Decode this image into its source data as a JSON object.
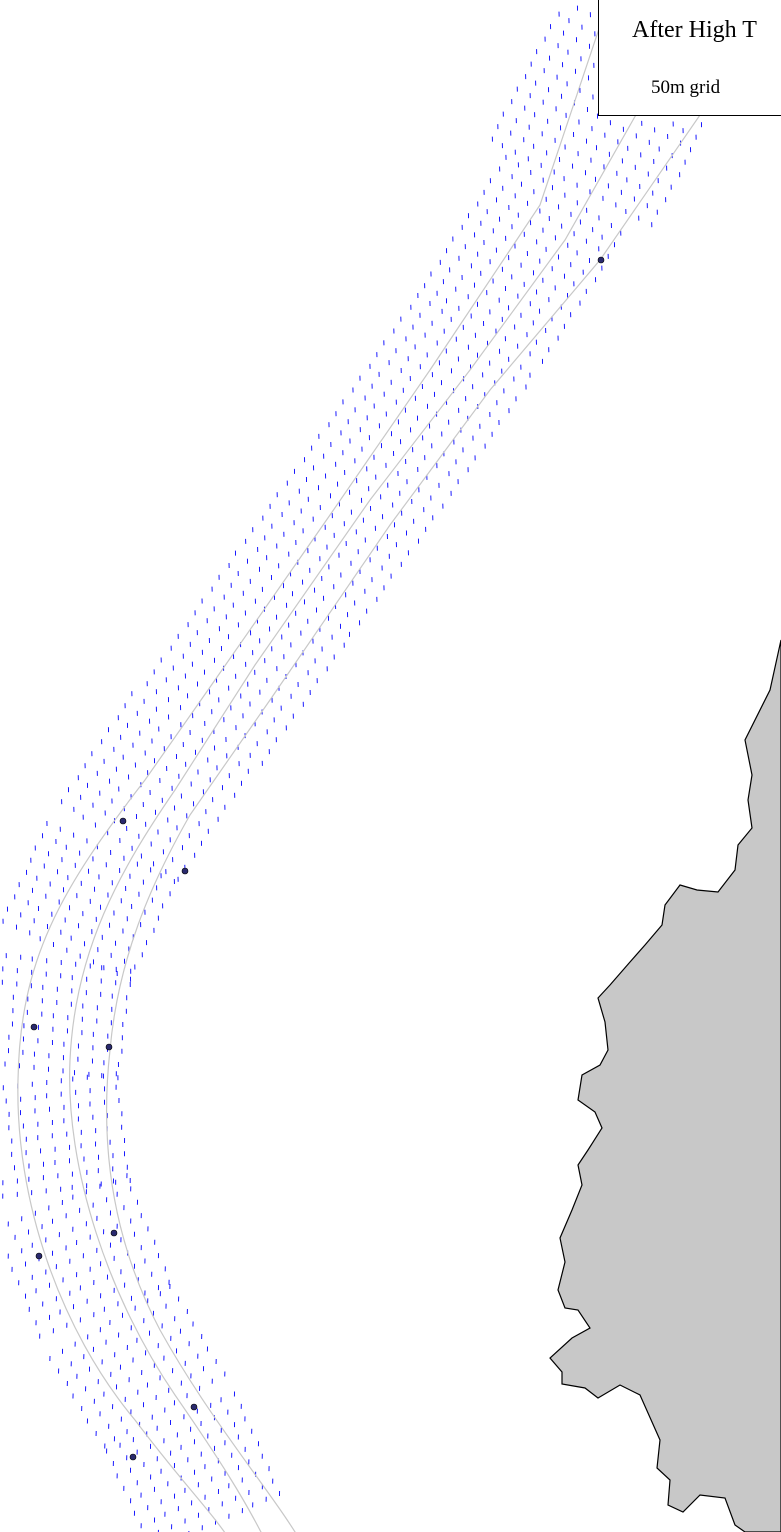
{
  "legend": {
    "title": "After High T",
    "subtitle": "50m grid"
  },
  "colors": {
    "background": "#ffffff",
    "land_fill": "#c8c8c8",
    "land_stroke": "#000000",
    "velocity_arrow": "#0000ff",
    "channel_line": "#c8c8c8",
    "station_fill": "#2a2a6e"
  },
  "layers": {
    "velocity_field": "velocity-arrows",
    "channel_centerlines": "channel-lines",
    "stations": "station-markers",
    "coastline": "land-polygon"
  }
}
